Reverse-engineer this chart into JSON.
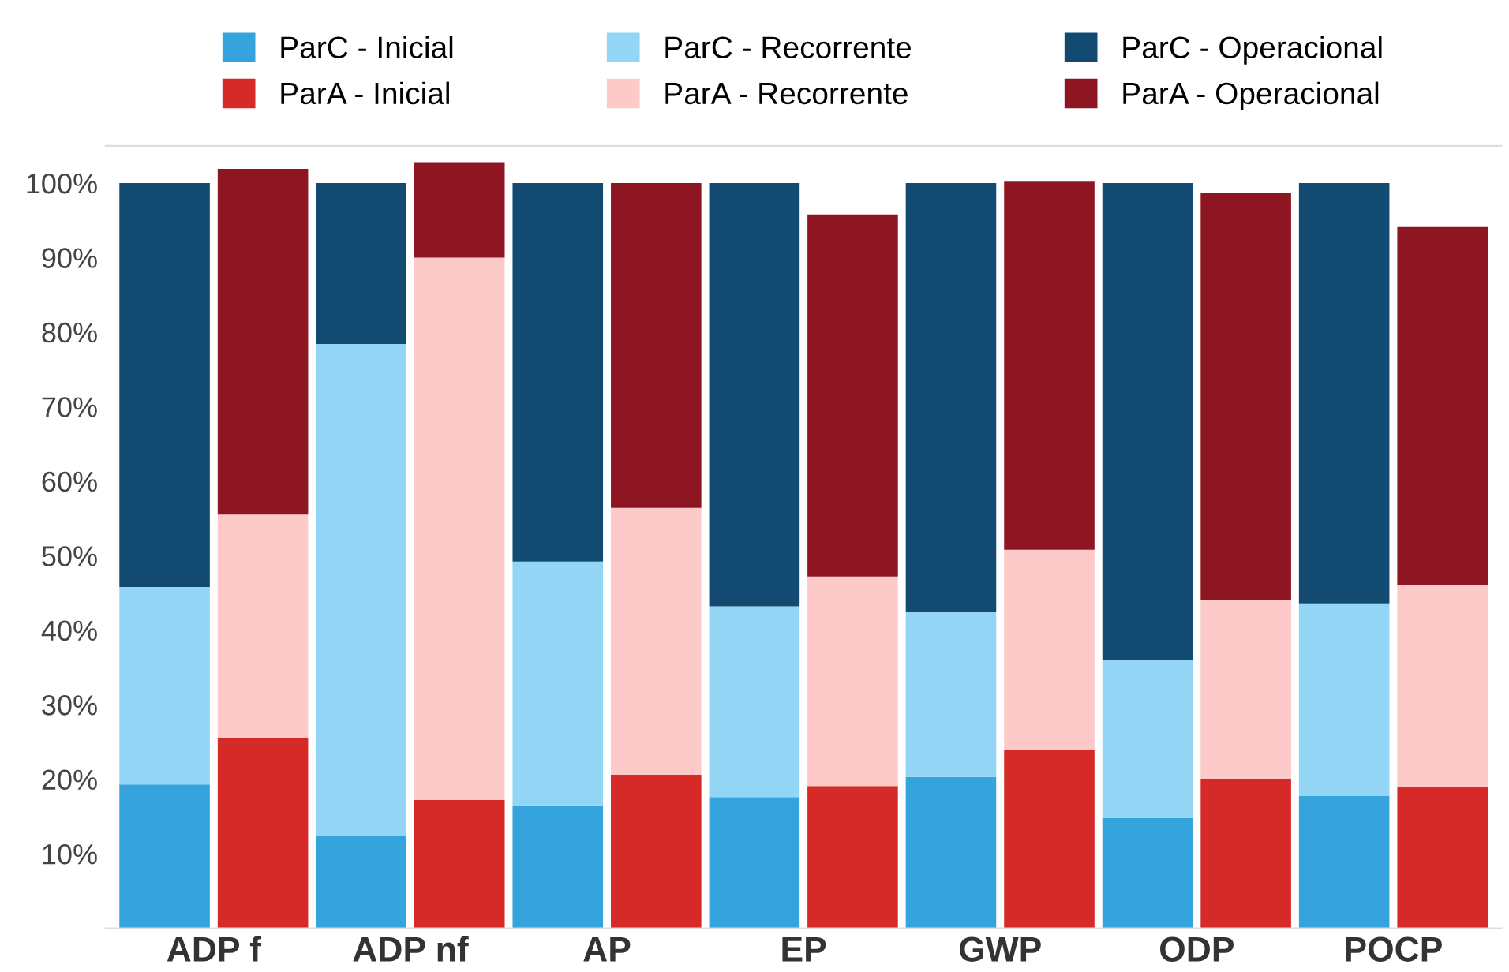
{
  "chart_data": {
    "type": "bar",
    "stacked": true,
    "categories": [
      "ADP f",
      null,
      "ADP nf",
      null,
      "AP",
      null,
      "EP",
      null,
      "GWP",
      null,
      "ODP",
      null,
      "POCP",
      null
    ],
    "series": [
      {
        "name": "ParC - Inicial",
        "color": "#35a3dc",
        "values": [
          19.3,
          null,
          12.5,
          null,
          16.5,
          null,
          17.6,
          null,
          20.3,
          null,
          14.8,
          null,
          17.8,
          null
        ]
      },
      {
        "name": "ParC - Recorrente",
        "color": "#93d5f4",
        "values": [
          26.5,
          null,
          65.9,
          null,
          32.7,
          null,
          25.6,
          null,
          22.1,
          null,
          21.2,
          null,
          25.8,
          null
        ]
      },
      {
        "name": "ParC - Operacional",
        "color": "#124a72",
        "values": [
          54.2,
          null,
          21.6,
          null,
          50.8,
          null,
          56.8,
          null,
          57.6,
          null,
          64.0,
          null,
          56.4,
          null
        ]
      },
      {
        "name": "ParA - Inicial",
        "color": "#d52a27",
        "values": [
          null,
          25.6,
          null,
          17.2,
          null,
          20.6,
          null,
          19.1,
          null,
          23.9,
          null,
          20.1,
          null,
          18.9
        ]
      },
      {
        "name": "ParA - Recorrente",
        "color": "#fdc9c9",
        "values": [
          null,
          29.9,
          null,
          72.8,
          null,
          35.8,
          null,
          28.1,
          null,
          26.9,
          null,
          24.0,
          null,
          27.1
        ]
      },
      {
        "name": "ParA - Operacional",
        "color": "#8e1622",
        "values": [
          null,
          46.4,
          null,
          12.8,
          null,
          43.6,
          null,
          48.6,
          null,
          49.4,
          null,
          54.6,
          null,
          48.1
        ]
      }
    ],
    "ylim": [
      0,
      105
    ],
    "yticks": [
      {
        "value": 10,
        "label": "10%"
      },
      {
        "value": 20,
        "label": "20%"
      },
      {
        "value": 30,
        "label": "30%"
      },
      {
        "value": 40,
        "label": "40%"
      },
      {
        "value": 50,
        "label": "50%"
      },
      {
        "value": 60,
        "label": "60%"
      },
      {
        "value": 70,
        "label": "70%"
      },
      {
        "value": 80,
        "label": "80%"
      },
      {
        "value": 90,
        "label": "90%"
      },
      {
        "value": 100,
        "label": "100%"
      }
    ],
    "grid": false,
    "legend": "top"
  }
}
